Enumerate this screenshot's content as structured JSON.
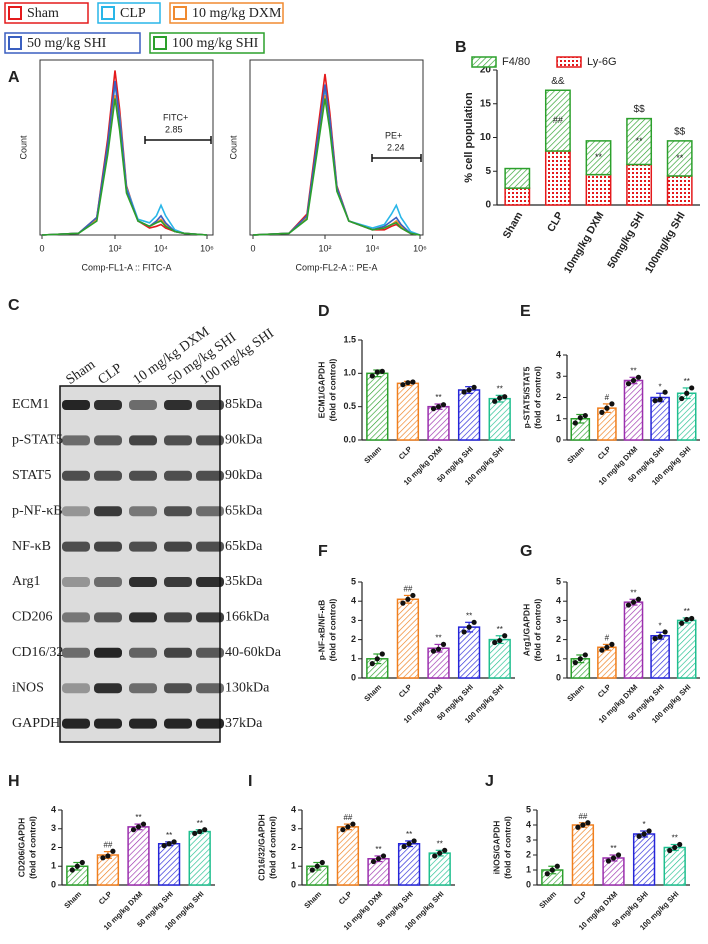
{
  "chart_data": [
    {
      "type": "line",
      "panel": "A",
      "xlabel": "Comp-FL1-A :: FITC-A",
      "ylabel": "Count",
      "xscale": "biexponential",
      "xlim": [
        0,
        6
      ],
      "ylim": [
        0,
        100
      ],
      "xticks": [
        {
          "value": 0,
          "label": "0"
        },
        {
          "value": 2,
          "label": "10²"
        },
        {
          "value": 4,
          "label": "10⁴"
        },
        {
          "value": 6,
          "label": "10⁶"
        }
      ],
      "gate": {
        "name": "FITC+",
        "percent": 2.85
      },
      "x": [
        0,
        1,
        1.5,
        1.8,
        2,
        2.2,
        2.5,
        3,
        3.5,
        3.8,
        4,
        4.2,
        4.6,
        5,
        6
      ],
      "series": [
        {
          "name": "Sham",
          "color": "#e41a1c",
          "values": [
            0,
            1,
            10,
            55,
            94,
            72,
            28,
            8,
            4,
            5,
            6,
            4,
            2,
            1,
            0
          ]
        },
        {
          "name": "CLP",
          "color": "#29b6e8",
          "values": [
            0,
            1,
            9,
            50,
            86,
            68,
            27,
            9,
            7,
            11,
            17,
            11,
            3,
            1,
            0
          ]
        },
        {
          "name": "10 mg/kg DXM",
          "color": "#f08a30",
          "values": [
            0,
            1,
            9,
            48,
            80,
            62,
            25,
            8,
            5,
            7,
            9,
            6,
            2,
            1,
            0
          ]
        },
        {
          "name": "50 mg/kg SHI",
          "color": "#3a5fc0",
          "values": [
            0,
            1,
            10,
            52,
            88,
            66,
            26,
            8,
            5,
            8,
            11,
            7,
            2,
            1,
            0
          ]
        },
        {
          "name": "100 mg/kg SHI",
          "color": "#2ca02c",
          "values": [
            0,
            1,
            8,
            46,
            78,
            60,
            24,
            8,
            5,
            7,
            8,
            5,
            2,
            1,
            0
          ]
        }
      ]
    },
    {
      "type": "line",
      "xlabel": "Comp-FL2-A :: PE-A",
      "ylabel": "Count",
      "xscale": "biexponential",
      "xlim": [
        0,
        6
      ],
      "ylim": [
        0,
        100
      ],
      "xticks": [
        {
          "value": 0,
          "label": "0"
        },
        {
          "value": 2,
          "label": "10²"
        },
        {
          "value": 4,
          "label": "10⁴"
        },
        {
          "value": 6,
          "label": "10⁶"
        }
      ],
      "gate": {
        "name": "PE+",
        "percent": 2.24
      },
      "x": [
        0,
        1,
        1.5,
        1.8,
        2,
        2.2,
        2.5,
        3,
        4,
        4.5,
        4.8,
        5,
        5.2,
        5.6,
        6
      ],
      "series": [
        {
          "color": "#e41a1c",
          "values": [
            0,
            1,
            12,
            60,
            92,
            70,
            28,
            8,
            3,
            3,
            5,
            6,
            4,
            1,
            0
          ]
        },
        {
          "color": "#29b6e8",
          "values": [
            0,
            1,
            10,
            55,
            84,
            66,
            27,
            8,
            4,
            6,
            12,
            17,
            10,
            2,
            0
          ]
        },
        {
          "color": "#f08a30",
          "values": [
            0,
            1,
            10,
            52,
            80,
            62,
            26,
            8,
            3,
            4,
            6,
            8,
            5,
            1,
            0
          ]
        },
        {
          "color": "#3a5fc0",
          "values": [
            0,
            1,
            11,
            56,
            86,
            66,
            27,
            8,
            3,
            5,
            8,
            10,
            6,
            1,
            0
          ]
        },
        {
          "color": "#2ca02c",
          "values": [
            0,
            1,
            9,
            50,
            78,
            60,
            25,
            8,
            3,
            4,
            6,
            7,
            4,
            1,
            0
          ]
        }
      ]
    },
    {
      "type": "bar",
      "stacked": true,
      "panel": "B",
      "ylabel": [
        "% cell population"
      ],
      "categories": [
        "Sham",
        "CLP",
        "10mg/kg DXM",
        "50mg/kg SHI",
        "100mg/kg SHI"
      ],
      "ylim": [
        0,
        20
      ],
      "yticks": [
        0,
        5,
        10,
        15,
        20
      ],
      "series": [
        {
          "name": "F4/80",
          "color": "#2ca02c",
          "values": [
            2.9,
            9,
            5,
            6.8,
            5.2
          ],
          "top_labels": [
            null,
            "&&",
            null,
            "$$",
            "$$"
          ],
          "inner_labels": [
            null,
            "##",
            "**",
            "**",
            "**"
          ]
        },
        {
          "name": "Ly-6G",
          "color": "#e41a1c",
          "values": [
            2.5,
            8,
            4.5,
            6,
            4.3
          ]
        }
      ]
    },
    {
      "type": "bar",
      "panel": "D",
      "ylabel": [
        "ECM1/GAPDH",
        "(fold of control)"
      ],
      "categories": [
        "Sham",
        "CLP",
        "10 mg/kg DXM",
        "50 mg/kg SHI",
        "100 mg/kg SHI"
      ],
      "colors": [
        "#2ca02c",
        "#f07f1e",
        "#9b2fae",
        "#2626d9",
        "#1fbf8f"
      ],
      "ylim": [
        0,
        1.5
      ],
      "yticks": [
        {
          "value": 0,
          "label": "0.0"
        },
        0.5,
        {
          "value": 1,
          "label": "1.0"
        },
        1.5
      ],
      "values": [
        1.0,
        0.85,
        0.5,
        0.75,
        0.62
      ],
      "errors": [
        0.05,
        0.03,
        0.04,
        0.05,
        0.05
      ],
      "points": [
        [
          0.96,
          1.02,
          1.03
        ],
        [
          0.83,
          0.86,
          0.87
        ],
        [
          0.47,
          0.5,
          0.53
        ],
        [
          0.72,
          0.75,
          0.79
        ],
        [
          0.58,
          0.63,
          0.65
        ]
      ],
      "significance": [
        null,
        null,
        "**",
        null,
        "**"
      ]
    },
    {
      "type": "bar",
      "panel": "E",
      "ylabel": [
        "p-STAT5/STAT5",
        "(fold of control)"
      ],
      "categories": [
        "Sham",
        "CLP",
        "10 mg/kg DXM",
        "50 mg/kg SHI",
        "100 mg/kg SHI"
      ],
      "colors": [
        "#2ca02c",
        "#f07f1e",
        "#9b2fae",
        "#2626d9",
        "#1fbf8f"
      ],
      "ylim": [
        0,
        4
      ],
      "yticks": [
        0,
        1,
        2,
        3,
        4
      ],
      "values": [
        1.0,
        1.5,
        2.8,
        2.0,
        2.2
      ],
      "errors": [
        0.2,
        0.2,
        0.15,
        0.2,
        0.25
      ],
      "points": [
        [
          0.8,
          1.05,
          1.15
        ],
        [
          1.3,
          1.5,
          1.7
        ],
        [
          2.65,
          2.8,
          2.95
        ],
        [
          1.85,
          1.9,
          2.25
        ],
        [
          1.95,
          2.2,
          2.45
        ]
      ],
      "significance": [
        null,
        "#",
        "**",
        "*",
        "**"
      ]
    },
    {
      "type": "bar",
      "panel": "F",
      "ylabel": [
        "p-NF-κB/NF-κB",
        "(fold of control)"
      ],
      "categories": [
        "Sham",
        "CLP",
        "10 mg/kg DXM",
        "50 mg/kg SHI",
        "100 mg/kg SHI"
      ],
      "colors": [
        "#2ca02c",
        "#f07f1e",
        "#9b2fae",
        "#2626d9",
        "#1fbf8f"
      ],
      "ylim": [
        0,
        5
      ],
      "yticks": [
        0,
        1,
        2,
        3,
        4,
        5
      ],
      "values": [
        1.0,
        4.1,
        1.55,
        2.65,
        2.0
      ],
      "errors": [
        0.25,
        0.2,
        0.2,
        0.25,
        0.2
      ],
      "points": [
        [
          0.75,
          1.0,
          1.25
        ],
        [
          3.9,
          4.1,
          4.3
        ],
        [
          1.4,
          1.5,
          1.75
        ],
        [
          2.4,
          2.65,
          2.9
        ],
        [
          1.85,
          1.95,
          2.2
        ]
      ],
      "significance": [
        null,
        "##",
        "**",
        "**",
        "**"
      ]
    },
    {
      "type": "bar",
      "panel": "G",
      "ylabel": [
        "Arg1/GAPDH",
        "(fold of control)"
      ],
      "categories": [
        "Sham",
        "CLP",
        "10 mg/kg DXM",
        "50 mg/kg SHI",
        "100 mg/kg SHI"
      ],
      "colors": [
        "#2ca02c",
        "#f07f1e",
        "#9b2fae",
        "#2626d9",
        "#1fbf8f"
      ],
      "ylim": [
        0,
        5
      ],
      "yticks": [
        0,
        1,
        2,
        3,
        4,
        5
      ],
      "values": [
        1.0,
        1.6,
        3.95,
        2.2,
        3.0
      ],
      "errors": [
        0.2,
        0.15,
        0.15,
        0.18,
        0.13
      ],
      "points": [
        [
          0.8,
          1.0,
          1.2
        ],
        [
          1.45,
          1.6,
          1.75
        ],
        [
          3.8,
          3.95,
          4.1
        ],
        [
          2.05,
          2.15,
          2.4
        ],
        [
          2.85,
          3.05,
          3.1
        ]
      ],
      "significance": [
        null,
        "#",
        "**",
        "*",
        "**"
      ]
    },
    {
      "type": "bar",
      "panel": "H",
      "ylabel": [
        "CD206/GAPDH",
        "(fold of control)"
      ],
      "categories": [
        "Sham",
        "CLP",
        "10 mg/kg DXM",
        "50 mg/kg SHI",
        "100 mg/kg SHI"
      ],
      "colors": [
        "#2ca02c",
        "#f07f1e",
        "#9b2fae",
        "#2626d9",
        "#1fbf8f"
      ],
      "ylim": [
        0,
        4
      ],
      "yticks": [
        0,
        1,
        2,
        3,
        4
      ],
      "values": [
        1.0,
        1.6,
        3.1,
        2.2,
        2.85
      ],
      "errors": [
        0.2,
        0.18,
        0.15,
        0.1,
        0.1
      ],
      "points": [
        [
          0.8,
          1.0,
          1.2
        ],
        [
          1.45,
          1.55,
          1.8
        ],
        [
          2.95,
          3.1,
          3.25
        ],
        [
          2.1,
          2.2,
          2.3
        ],
        [
          2.75,
          2.85,
          2.95
        ]
      ],
      "significance": [
        null,
        "##",
        "**",
        "**",
        "**"
      ]
    },
    {
      "type": "bar",
      "panel": "I",
      "ylabel": [
        "CD16/32/GAPDH",
        "(fold of control)"
      ],
      "categories": [
        "Sham",
        "CLP",
        "10 mg/kg DXM",
        "50 mg/kg SHI",
        "100 mg/kg SHI"
      ],
      "colors": [
        "#2ca02c",
        "#f07f1e",
        "#9b2fae",
        "#2626d9",
        "#1fbf8f"
      ],
      "ylim": [
        0,
        4
      ],
      "yticks": [
        0,
        1,
        2,
        3,
        4
      ],
      "values": [
        1.0,
        3.1,
        1.4,
        2.2,
        1.7
      ],
      "errors": [
        0.2,
        0.15,
        0.15,
        0.15,
        0.15
      ],
      "points": [
        [
          0.8,
          1.0,
          1.2
        ],
        [
          2.95,
          3.1,
          3.25
        ],
        [
          1.25,
          1.4,
          1.55
        ],
        [
          2.05,
          2.2,
          2.35
        ],
        [
          1.55,
          1.7,
          1.85
        ]
      ],
      "significance": [
        null,
        "##",
        "**",
        "**",
        "**"
      ]
    },
    {
      "type": "bar",
      "panel": "J",
      "ylabel": [
        "iNOS/GAPDH",
        "(fold of control)"
      ],
      "categories": [
        "Sham",
        "CLP",
        "10 mg/kg DXM",
        "50 mg/kg SHI",
        "100 mg/kg SHI"
      ],
      "colors": [
        "#2ca02c",
        "#f07f1e",
        "#9b2fae",
        "#2626d9",
        "#1fbf8f"
      ],
      "ylim": [
        0,
        5
      ],
      "yticks": [
        0,
        1,
        2,
        3,
        4,
        5
      ],
      "values": [
        1.0,
        4.0,
        1.8,
        3.4,
        2.5
      ],
      "errors": [
        0.25,
        0.15,
        0.2,
        0.2,
        0.2
      ],
      "points": [
        [
          0.75,
          1.0,
          1.25
        ],
        [
          3.85,
          4.0,
          4.15
        ],
        [
          1.6,
          1.8,
          2.0
        ],
        [
          3.25,
          3.4,
          3.6
        ],
        [
          2.3,
          2.5,
          2.7
        ]
      ],
      "significance": [
        null,
        "##",
        "**",
        "*",
        "**"
      ]
    }
  ],
  "blot": {
    "panel": "C",
    "lanes": [
      "Sham",
      "CLP",
      "10 mg/kg DXM",
      "50 mg/kg SHI",
      "100 mg/kg SHI"
    ],
    "rows": [
      {
        "label": "ECM1",
        "size": "85kDa"
      },
      {
        "label": "p-STAT5",
        "size": "90kDa"
      },
      {
        "label": "STAT5",
        "size": "90kDa"
      },
      {
        "label": "p-NF-κB",
        "size": "65kDa"
      },
      {
        "label": "NF-κB",
        "size": "65kDa"
      },
      {
        "label": "Arg1",
        "size": "35kDa"
      },
      {
        "label": "CD206",
        "size": "166kDa"
      },
      {
        "label": "CD16/32",
        "size": "40-60kDa"
      },
      {
        "label": "iNOS",
        "size": "130kDa"
      },
      {
        "label": "GAPDH",
        "size": "37kDa"
      }
    ]
  }
}
